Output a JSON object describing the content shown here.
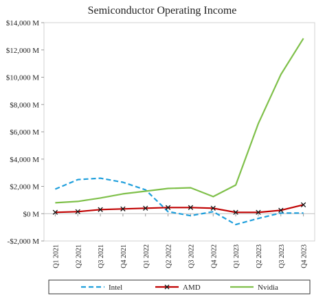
{
  "chart_data": {
    "type": "line",
    "title": "Semiconductor Operating Income",
    "categories": [
      "Q1 2021",
      "Q2 2021",
      "Q3 2021",
      "Q4 2021",
      "Q1 2022",
      "Q2 2022",
      "Q3 2022",
      "Q4 2022",
      "Q1 2023",
      "Q2 2023",
      "Q3 2023",
      "Q4 2023"
    ],
    "ylim": [
      -2000,
      14000
    ],
    "ytick_values": [
      -2000,
      0,
      2000,
      4000,
      6000,
      8000,
      10000,
      12000,
      14000
    ],
    "ytick_labels": [
      "-$2,000 M",
      "$0 M",
      "$2,000 M",
      "$4,000 M",
      "$6,000 M",
      "$8,000 M",
      "$10,000 M",
      "$12,000 M",
      "$14,000 M"
    ],
    "grid": false,
    "legend_position": "bottom",
    "series": [
      {
        "name": "Intel",
        "color": "#1f9fdc",
        "style": "dashed",
        "marker": "none",
        "values": [
          1800,
          2500,
          2600,
          2300,
          1750,
          150,
          -150,
          150,
          -800,
          -350,
          50,
          50
        ]
      },
      {
        "name": "AMD",
        "color": "#c00000",
        "style": "solid",
        "marker": "x",
        "values": [
          100,
          150,
          300,
          350,
          400,
          450,
          450,
          400,
          100,
          100,
          250,
          650
        ]
      },
      {
        "name": "Nvidia",
        "color": "#7fc04a",
        "style": "solid",
        "marker": "none",
        "values": [
          800,
          900,
          1150,
          1450,
          1650,
          1850,
          1900,
          1250,
          2100,
          6600,
          10200,
          12850
        ]
      }
    ]
  }
}
